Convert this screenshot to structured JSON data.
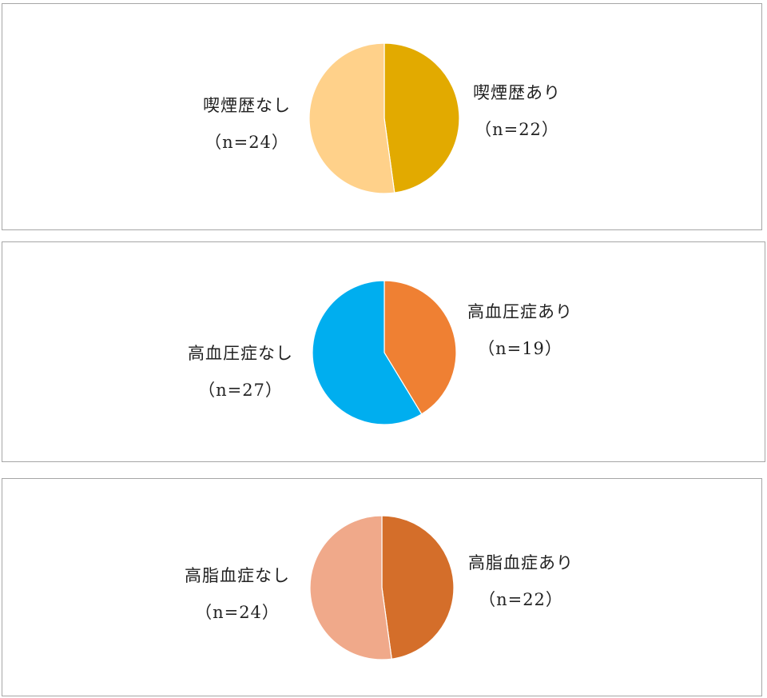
{
  "chart_data": [
    {
      "type": "pie",
      "slices": [
        {
          "label": "喫煙歴あり",
          "count_label": "（n=22）",
          "value": 22,
          "color": "#e2aa00"
        },
        {
          "label": "喫煙歴なし",
          "count_label": "（n=24）",
          "value": 24,
          "color": "#ffd18a"
        }
      ]
    },
    {
      "type": "pie",
      "slices": [
        {
          "label": "高血圧症あり",
          "count_label": "（n=19）",
          "value": 19,
          "color": "#ef8033"
        },
        {
          "label": "高血圧症なし",
          "count_label": "（n=27）",
          "value": 27,
          "color": "#00aeef"
        }
      ]
    },
    {
      "type": "pie",
      "slices": [
        {
          "label": "高脂血症あり",
          "count_label": "（n=22）",
          "value": 22,
          "color": "#d46e2a"
        },
        {
          "label": "高脂血症なし",
          "count_label": "（n=24）",
          "value": 24,
          "color": "#f0a98a"
        }
      ]
    }
  ]
}
